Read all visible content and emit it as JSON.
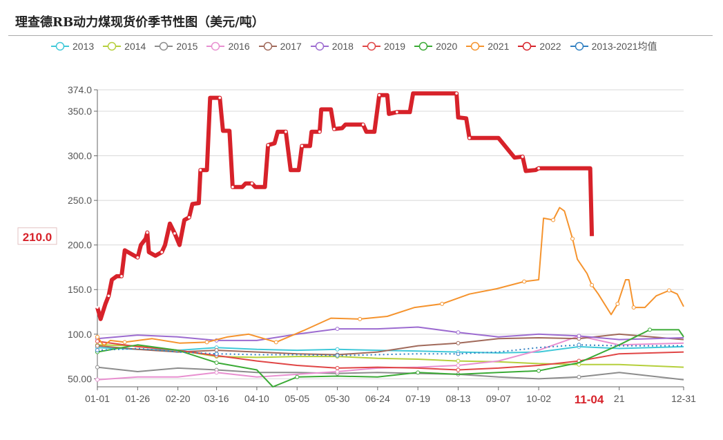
{
  "title": "理查德RB动力煤现货价季节性图（美元/吨）",
  "chart_data": {
    "type": "line",
    "title": "理查德RB动力煤现货价季节性图（美元/吨）",
    "xlabel": "",
    "ylabel": "",
    "ylim": [
      41,
      374
    ],
    "y_ticks": [
      "50.00",
      "100.0",
      "150.0",
      "200.0",
      "250.0",
      "300.0",
      "350.0",
      "374.0"
    ],
    "y_tick_values": [
      50,
      100,
      150,
      200,
      250,
      300,
      350,
      374
    ],
    "x_ticks": [
      "01-01",
      "01-26",
      "02-20",
      "03-16",
      "04-10",
      "05-05",
      "05-30",
      "06-24",
      "07-19",
      "08-13",
      "09-07",
      "10-02",
      "21",
      "12-31"
    ],
    "x_tick_dates": [
      "01-01",
      "01-26",
      "02-20",
      "03-16",
      "04-10",
      "05-05",
      "05-30",
      "06-24",
      "07-19",
      "08-13",
      "09-07",
      "10-02",
      "11-21",
      "12-31"
    ],
    "highlight_x": "11-04",
    "highlight_y": "210.0",
    "grid": true,
    "legend_position": "top",
    "series": [
      {
        "name": "2013",
        "color": "#3fc8d8",
        "x": [
          "01-01",
          "01-26",
          "02-20",
          "03-16",
          "04-10",
          "05-05",
          "05-30",
          "06-24",
          "07-19",
          "08-13",
          "09-07",
          "10-02",
          "10-27",
          "11-21",
          "12-31"
        ],
        "values": [
          85,
          83,
          82,
          85,
          83,
          82,
          83,
          82,
          81,
          80,
          79,
          80,
          86,
          84,
          86
        ]
      },
      {
        "name": "2014",
        "color": "#b5cf3b",
        "x": [
          "01-01",
          "01-26",
          "02-20",
          "03-16",
          "04-10",
          "05-05",
          "05-30",
          "06-24",
          "07-19",
          "08-13",
          "09-07",
          "10-02",
          "10-27",
          "11-21",
          "12-31"
        ],
        "values": [
          88,
          87,
          82,
          75,
          74,
          75,
          75,
          73,
          72,
          70,
          69,
          67,
          66,
          66,
          63
        ]
      },
      {
        "name": "2015",
        "color": "#8c8c8c",
        "x": [
          "01-01",
          "01-26",
          "02-20",
          "03-16",
          "04-10",
          "05-05",
          "05-30",
          "06-24",
          "07-19",
          "08-13",
          "09-07",
          "10-02",
          "10-27",
          "11-21",
          "12-31"
        ],
        "values": [
          63,
          58,
          62,
          60,
          57,
          57,
          56,
          57,
          56,
          55,
          52,
          50,
          52,
          57,
          49
        ]
      },
      {
        "name": "2016",
        "color": "#e88fd0",
        "x": [
          "01-01",
          "01-26",
          "02-20",
          "03-16",
          "04-10",
          "05-05",
          "05-30",
          "06-24",
          "07-19",
          "08-13",
          "09-07",
          "10-02",
          "10-27",
          "11-21",
          "12-31"
        ],
        "values": [
          49,
          52,
          52,
          57,
          52,
          55,
          58,
          62,
          63,
          65,
          70,
          82,
          98,
          88,
          90
        ]
      },
      {
        "name": "2017",
        "color": "#a0695a",
        "x": [
          "01-01",
          "01-26",
          "02-20",
          "03-16",
          "04-10",
          "05-05",
          "05-30",
          "06-24",
          "07-19",
          "08-13",
          "09-07",
          "10-02",
          "10-27",
          "11-21",
          "12-31"
        ],
        "values": [
          87,
          83,
          80,
          82,
          80,
          78,
          77,
          80,
          87,
          90,
          95,
          96,
          95,
          100,
          94
        ]
      },
      {
        "name": "2018",
        "color": "#9c6bd0",
        "x": [
          "01-01",
          "01-26",
          "02-20",
          "03-16",
          "04-10",
          "05-05",
          "05-30",
          "06-24",
          "07-19",
          "08-13",
          "09-07",
          "10-02",
          "10-27",
          "11-21",
          "12-31"
        ],
        "values": [
          95,
          99,
          97,
          93,
          93,
          100,
          106,
          106,
          108,
          102,
          97,
          100,
          98,
          94,
          96
        ]
      },
      {
        "name": "2019",
        "color": "#e04545",
        "x": [
          "01-01",
          "01-26",
          "02-20",
          "03-16",
          "04-10",
          "05-05",
          "05-30",
          "06-24",
          "07-19",
          "08-13",
          "09-07",
          "10-02",
          "10-27",
          "11-21",
          "12-31"
        ],
        "values": [
          92,
          86,
          82,
          76,
          70,
          65,
          62,
          63,
          62,
          60,
          62,
          65,
          70,
          78,
          80
        ]
      },
      {
        "name": "2020",
        "color": "#3aaa35",
        "x": [
          "01-01",
          "01-26",
          "02-20",
          "03-16",
          "04-10",
          "04-20",
          "05-05",
          "05-30",
          "06-24",
          "07-19",
          "08-13",
          "09-07",
          "10-02",
          "10-27",
          "11-21",
          "12-10",
          "12-28",
          "12-31"
        ],
        "values": [
          80,
          88,
          82,
          68,
          60,
          41,
          52,
          53,
          52,
          57,
          55,
          57,
          59,
          68,
          88,
          105,
          105,
          97
        ]
      },
      {
        "name": "2021",
        "color": "#f5932d",
        "x": [
          "01-01",
          "01-05",
          "01-09",
          "01-18",
          "02-04",
          "02-21",
          "03-10",
          "03-23",
          "04-05",
          "04-22",
          "05-09",
          "05-26",
          "06-13",
          "06-30",
          "07-17",
          "08-03",
          "08-20",
          "09-06",
          "09-23",
          "10-02",
          "10-05",
          "10-11",
          "10-15",
          "10-18",
          "10-23",
          "10-26",
          "11-01",
          "11-04",
          "11-08",
          "11-16",
          "11-20",
          "11-25",
          "11-27",
          "11-30",
          "12-07",
          "12-14",
          "12-22",
          "12-27",
          "12-31"
        ],
        "values": [
          97,
          87,
          93,
          91,
          95,
          90,
          91,
          97,
          100,
          91,
          104,
          118,
          117,
          120,
          130,
          134,
          145,
          151,
          159,
          161,
          230,
          228,
          242,
          238,
          207,
          184,
          168,
          155,
          145,
          122,
          134,
          161,
          161,
          130,
          130,
          143,
          149,
          145,
          131
        ]
      },
      {
        "name": "2022",
        "color": "#d7222a",
        "x": [
          "01-01",
          "01-03",
          "01-06",
          "01-08",
          "01-10",
          "01-13",
          "01-16",
          "01-18",
          "01-22",
          "01-26",
          "01-28",
          "01-31",
          "02-01",
          "02-02",
          "02-06",
          "02-10",
          "02-12",
          "02-15",
          "02-18",
          "02-21",
          "02-24",
          "02-27",
          "03-01",
          "03-05",
          "03-06",
          "03-10",
          "03-12",
          "03-18",
          "03-20",
          "03-24",
          "03-26",
          "04-01",
          "04-03",
          "04-07",
          "04-09",
          "04-15",
          "04-17",
          "04-21",
          "04-23",
          "04-28",
          "05-01",
          "05-06",
          "05-08",
          "05-13",
          "05-14",
          "05-19",
          "05-20",
          "05-26",
          "05-28",
          "06-02",
          "06-04",
          "06-15",
          "06-17",
          "06-22",
          "06-25",
          "06-30",
          "07-01",
          "07-06",
          "07-14",
          "07-16",
          "08-12",
          "08-13",
          "08-18",
          "08-20",
          "09-07",
          "09-17",
          "09-22",
          "09-24",
          "09-30",
          "10-02",
          "11-03",
          "11-04"
        ],
        "values": [
          130,
          117,
          134,
          143,
          161,
          165,
          165,
          194,
          190,
          186,
          200,
          207,
          214,
          192,
          188,
          192,
          200,
          224,
          213,
          200,
          228,
          231,
          246,
          247,
          284,
          284,
          365,
          365,
          328,
          328,
          265,
          265,
          269,
          269,
          265,
          265,
          312,
          314,
          327,
          327,
          284,
          284,
          311,
          311,
          327,
          327,
          352,
          352,
          330,
          331,
          335,
          335,
          327,
          327,
          368,
          368,
          347,
          349,
          349,
          370,
          370,
          343,
          342,
          320,
          320,
          298,
          299,
          283,
          284,
          286,
          286,
          210
        ]
      },
      {
        "name": "2013-2021均值",
        "color": "#2f7fc1",
        "dashed": true,
        "x": [
          "01-01",
          "01-26",
          "02-20",
          "03-16",
          "04-10",
          "05-05",
          "05-30",
          "06-24",
          "07-19",
          "08-13",
          "09-07",
          "10-02",
          "10-27",
          "11-21",
          "12-31"
        ],
        "values": [
          82,
          84,
          80,
          78,
          77,
          77,
          76,
          77,
          78,
          78,
          80,
          85,
          88,
          87,
          87
        ]
      }
    ]
  }
}
